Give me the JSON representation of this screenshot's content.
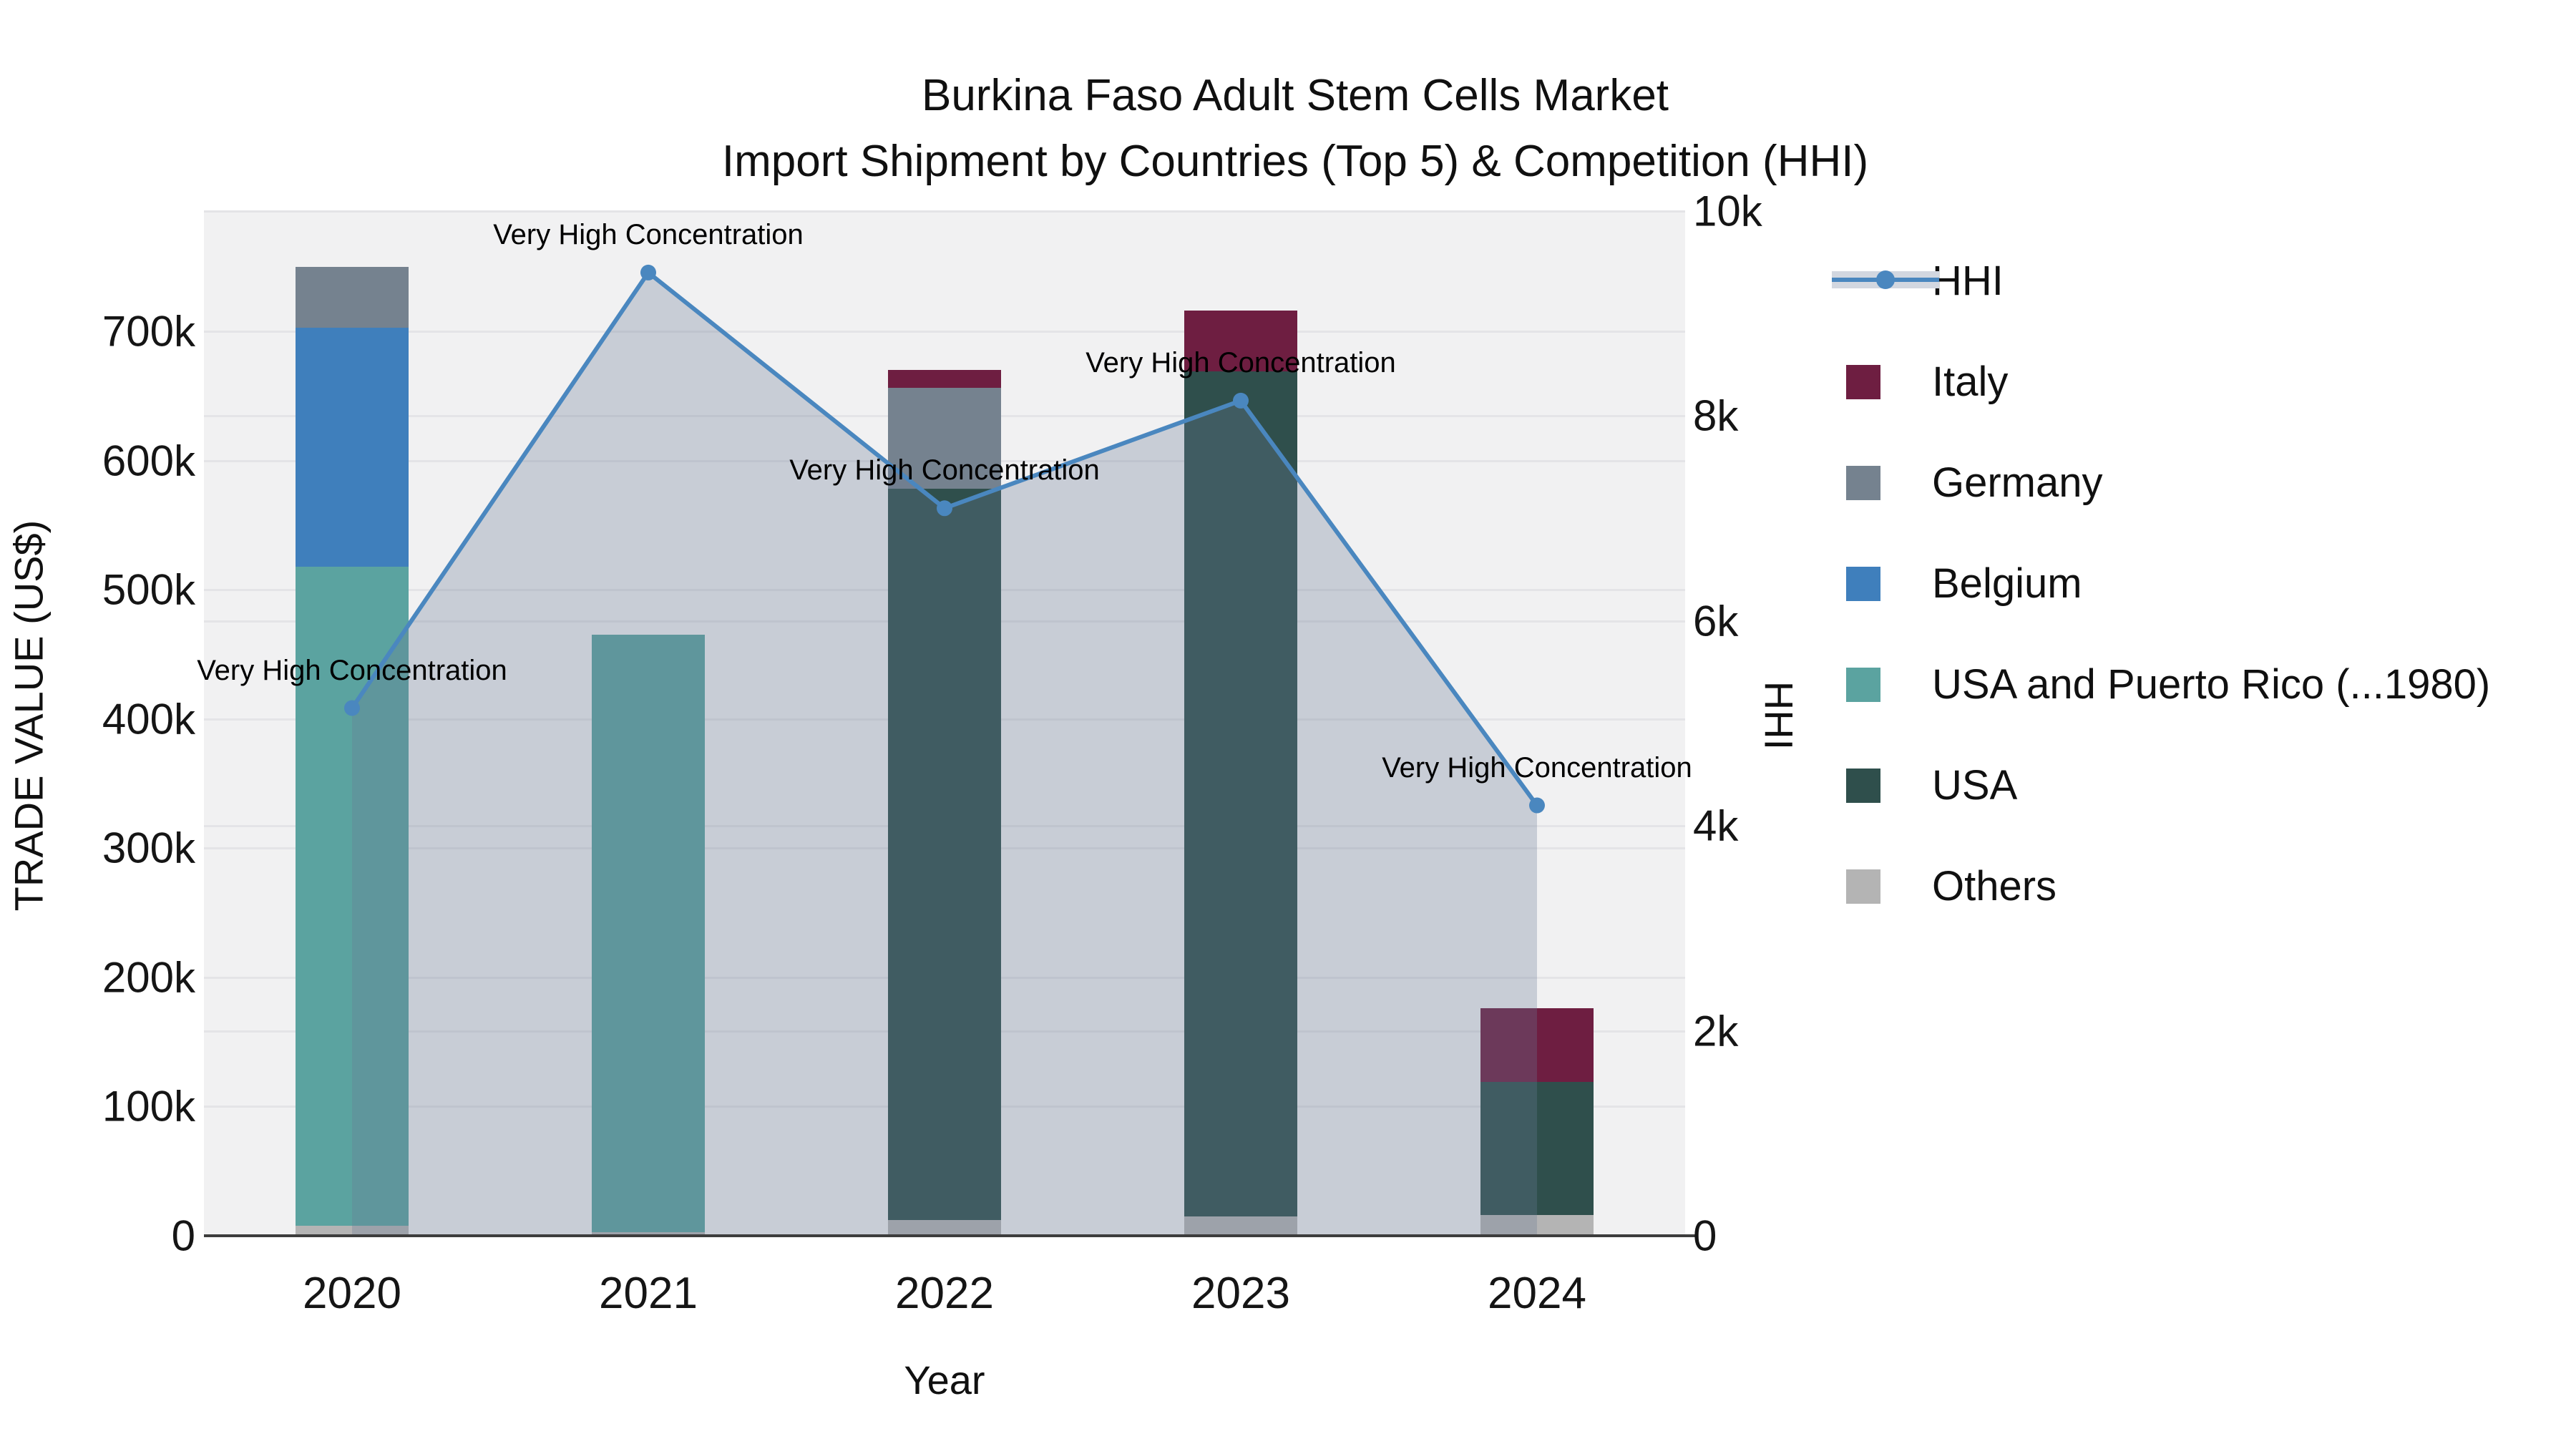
{
  "title": {
    "line1": "Burkina Faso Adult Stem Cells Market",
    "line2": "Import Shipment by Countries (Top 5) & Competition (HHI)"
  },
  "left_axis": {
    "title": "TRADE VALUE (US$)",
    "ticks": [
      {
        "label": "0",
        "value": 0
      },
      {
        "label": "100k",
        "value": 100000
      },
      {
        "label": "200k",
        "value": 200000
      },
      {
        "label": "300k",
        "value": 300000
      },
      {
        "label": "400k",
        "value": 400000
      },
      {
        "label": "500k",
        "value": 500000
      },
      {
        "label": "600k",
        "value": 600000
      },
      {
        "label": "700k",
        "value": 700000
      }
    ]
  },
  "right_axis": {
    "title": "HHI",
    "ticks": [
      {
        "label": "0",
        "value": 0
      },
      {
        "label": "2k",
        "value": 2000
      },
      {
        "label": "4k",
        "value": 4000
      },
      {
        "label": "6k",
        "value": 6000
      },
      {
        "label": "8k",
        "value": 8000
      },
      {
        "label": "10k",
        "value": 10000
      }
    ]
  },
  "x_axis": {
    "title": "Year",
    "categories": [
      "2020",
      "2021",
      "2022",
      "2023",
      "2024"
    ]
  },
  "legend": {
    "items": [
      {
        "label": "HHI",
        "type": "line"
      },
      {
        "label": "Italy",
        "type": "swatch",
        "color": "#6e1e41"
      },
      {
        "label": "Germany",
        "type": "swatch",
        "color": "#75828f"
      },
      {
        "label": "Belgium",
        "type": "swatch",
        "color": "#3f7fbc"
      },
      {
        "label": "USA and Puerto Rico (...1980)",
        "type": "swatch",
        "color": "#5ba3a0"
      },
      {
        "label": "USA",
        "type": "swatch",
        "color": "#2f4f4c"
      },
      {
        "label": "Others",
        "type": "swatch",
        "color": "#b4b4b4"
      }
    ]
  },
  "colors": {
    "hhi_line": "#4a87bf",
    "hhi_area": "rgba(105,122,150,0.30)",
    "plot_background": "#f1f1f2",
    "gridline": "#e4e4e7",
    "axis_line": "#3d3d3d"
  },
  "chart_data": {
    "type": "composite (stacked bar + line with area)",
    "categories": [
      "2020",
      "2021",
      "2022",
      "2023",
      "2024"
    ],
    "bar_axis": {
      "label": "TRADE VALUE (US$)",
      "ylim": [
        0,
        793000
      ]
    },
    "line_axis": {
      "label": "HHI",
      "ylim": [
        0,
        10000
      ]
    },
    "bar_series_bottom_to_top": [
      {
        "name": "Others",
        "color": "#b4b4b4",
        "values": [
          8000,
          3000,
          12000,
          15000,
          16000
        ]
      },
      {
        "name": "USA",
        "color": "#2f4f4c",
        "values": [
          0,
          0,
          566000,
          654000,
          103000
        ]
      },
      {
        "name": "USA and Puerto Rico (...1980)",
        "color": "#5ba3a0",
        "values": [
          510000,
          462000,
          0,
          0,
          0
        ]
      },
      {
        "name": "Belgium",
        "color": "#3f7fbc",
        "values": [
          185000,
          0,
          0,
          0,
          0
        ]
      },
      {
        "name": "Germany",
        "color": "#75828f",
        "values": [
          47000,
          0,
          78000,
          0,
          0
        ]
      },
      {
        "name": "Italy",
        "color": "#6e1e41",
        "values": [
          0,
          0,
          14000,
          47000,
          57000
        ]
      }
    ],
    "bar_totals": [
      750000,
      465000,
      670000,
      716000,
      176000
    ],
    "hhi_series": {
      "name": "HHI",
      "values": [
        5150,
        9400,
        7100,
        8150,
        4200
      ],
      "annotation": "Very High Concentration",
      "fill": "to zero",
      "legend_position": "right"
    }
  }
}
